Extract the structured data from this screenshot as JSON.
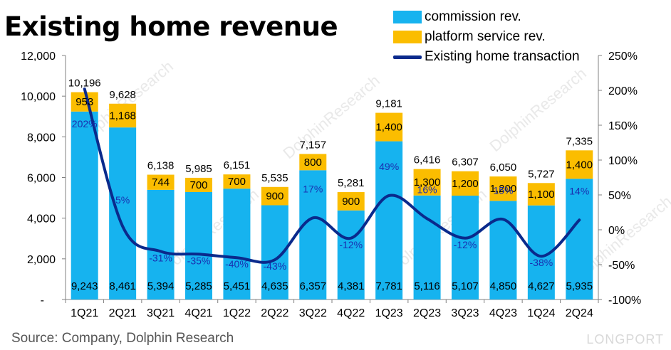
{
  "title": "Existing home revenue",
  "source": "Source: Company, Dolphin Research",
  "watermark": "LONGPORT",
  "colors": {
    "commission": "#16b3ef",
    "platform": "#fbbd00",
    "line": "#0a2a8c",
    "pct_text": "#1a2fb0"
  },
  "legend": {
    "commission": "commission rev.",
    "platform": "platform service rev.",
    "line": "Existing home transaction"
  },
  "chart_data": {
    "type": "bar",
    "stacked": true,
    "categories": [
      "1Q21",
      "2Q21",
      "3Q21",
      "4Q21",
      "1Q22",
      "2Q22",
      "3Q22",
      "4Q22",
      "1Q23",
      "2Q23",
      "3Q23",
      "4Q23",
      "1Q24",
      "2Q24"
    ],
    "series": [
      {
        "name": "commission rev.",
        "values": [
          9243,
          8461,
          5394,
          5285,
          5451,
          4635,
          6357,
          4381,
          7781,
          5116,
          5107,
          4850,
          4627,
          5935
        ]
      },
      {
        "name": "platform service rev.",
        "values": [
          953,
          1168,
          744,
          700,
          700,
          900,
          800,
          900,
          1400,
          1300,
          1200,
          1200,
          1100,
          1400
        ]
      }
    ],
    "totals": [
      "10,196",
      "9,628",
      "6,138",
      "5,985",
      "6,151",
      "5,535",
      "7,157",
      "5,281",
      "9,181",
      "6,416",
      "6,307",
      "6,050",
      "5,727",
      "7,335"
    ],
    "commission_labels": [
      "9,243",
      "8,461",
      "5,394",
      "5,285",
      "5,451",
      "4,635",
      "6,357",
      "4,381",
      "7,781",
      "5,116",
      "5,107",
      "4,850",
      "4,627",
      "5,935"
    ],
    "platform_labels": [
      "953",
      "1,168",
      "744",
      "700",
      "700",
      "900",
      "800",
      "900",
      "1,400",
      "1,300",
      "1,200",
      "1,200",
      "1,100",
      "1,400"
    ],
    "line_series": {
      "name": "Existing home transaction",
      "axis": "right",
      "values": [
        202,
        5,
        -31,
        -35,
        -40,
        -43,
        17,
        -12,
        49,
        16,
        -12,
        15,
        -38,
        14
      ],
      "labels": [
        "202%",
        "5%",
        "-31%",
        "-35%",
        "-40%",
        "-43%",
        "17%",
        "-12%",
        "49%",
        "16%",
        "-12%",
        "15%",
        "-38%",
        "14%"
      ]
    },
    "y_left": {
      "min": 0,
      "max": 12000,
      "ticks": [
        0,
        2000,
        4000,
        6000,
        8000,
        10000,
        12000
      ],
      "tick_labels": [
        "-",
        "2,000",
        "4,000",
        "6,000",
        "8,000",
        "10,000",
        "12,000"
      ]
    },
    "y_right": {
      "min": -100,
      "max": 250,
      "ticks": [
        -100,
        -50,
        0,
        50,
        100,
        150,
        200,
        250
      ],
      "tick_labels": [
        "-100%",
        "-50%",
        "0%",
        "50%",
        "100%",
        "150%",
        "200%",
        "250%"
      ]
    },
    "legend_position": "top-right"
  }
}
